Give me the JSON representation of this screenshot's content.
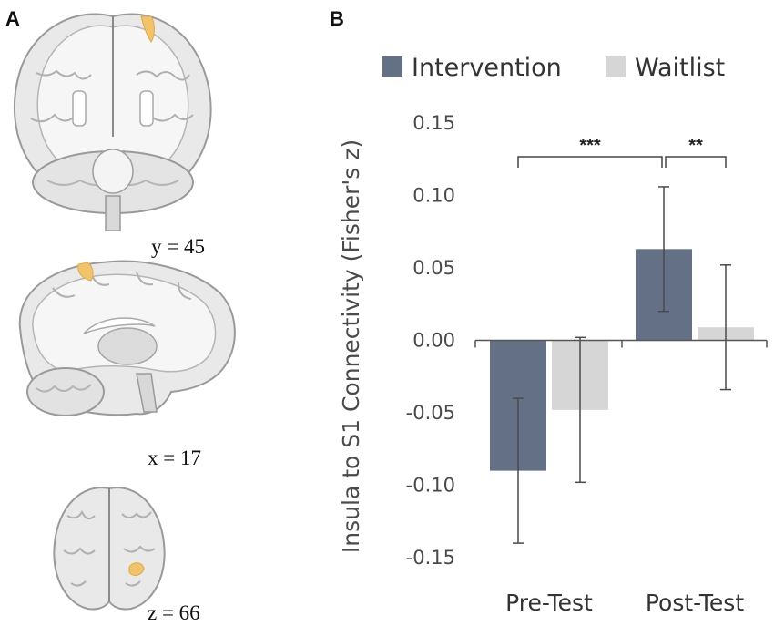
{
  "panels": {
    "a_label": "A",
    "b_label": "B"
  },
  "brain_slices": [
    {
      "label": "y = 45"
    },
    {
      "label": "x = 17"
    },
    {
      "label": "z = 66"
    }
  ],
  "colors": {
    "intervention": "#647086",
    "waitlist": "#d6d6d6",
    "highlight": "#f1c46c",
    "brain_fill": "#e9e9e9",
    "brain_white": "#f6f6f6",
    "brain_edge": "#9a9a9a",
    "axis": "#555555"
  },
  "chart_data": {
    "type": "bar",
    "categories": [
      "Pre-Test",
      "Post-Test"
    ],
    "series": [
      {
        "name": "Intervention",
        "values": [
          -0.09,
          0.063
        ],
        "errors": [
          0.05,
          0.043
        ]
      },
      {
        "name": "Waitlist",
        "values": [
          -0.048,
          0.009
        ],
        "errors": [
          0.05,
          0.043
        ]
      }
    ],
    "ylabel": "Insula to S1 Connectivity (Fisher's z)",
    "xlabel": "",
    "ylim": [
      -0.15,
      0.15
    ],
    "yticks": [
      0.15,
      0.1,
      0.05,
      0.0,
      -0.05,
      -0.1,
      -0.15
    ],
    "ytick_labels": [
      "0.15",
      "0.10",
      "0.05",
      "0.00",
      "-0.05",
      "-0.10",
      "-0.15"
    ],
    "legend_position": "top",
    "significance": [
      {
        "label": "***",
        "from": "Pre-Test Intervention",
        "to": "Post-Test Intervention"
      },
      {
        "label": "**",
        "from": "Post-Test Intervention",
        "to": "Post-Test Waitlist"
      }
    ]
  }
}
